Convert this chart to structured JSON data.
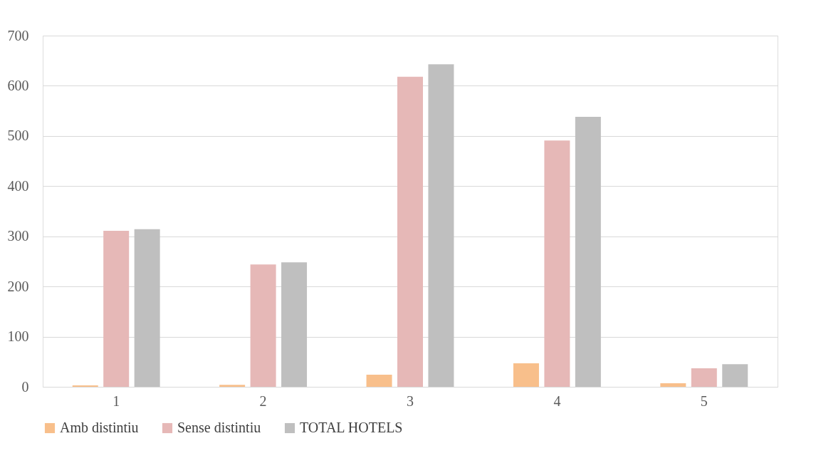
{
  "chart_data": {
    "type": "bar",
    "categories": [
      "1",
      "2",
      "3",
      "4",
      "5"
    ],
    "series": [
      {
        "name": "Amb distintiu",
        "color": "#f8bf8b",
        "values": [
          3,
          4,
          24,
          47,
          7
        ]
      },
      {
        "name": "Sense distintiu",
        "color": "#e6b8b7",
        "values": [
          311,
          244,
          618,
          491,
          37
        ]
      },
      {
        "name": "TOTAL HOTELS",
        "color": "#bfbfbf",
        "values": [
          314,
          248,
          643,
          538,
          45
        ]
      }
    ],
    "ylim": [
      0,
      700
    ],
    "yticks": [
      0,
      100,
      200,
      300,
      400,
      500,
      600,
      700
    ],
    "grid": "y",
    "legend": "bottom"
  }
}
